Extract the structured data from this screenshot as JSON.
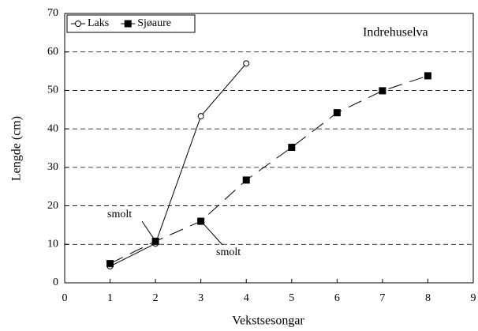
{
  "chart_data": {
    "type": "line",
    "xlabel": "Vekstsesongar",
    "ylabel": "Lengde (cm)",
    "annotations": [
      {
        "text": "Indrehuselva"
      },
      {
        "text": "smolt"
      },
      {
        "text": "smolt"
      }
    ],
    "x": [
      1,
      2,
      3,
      4,
      5,
      6,
      7,
      8
    ],
    "series": [
      {
        "name": "Laks",
        "color": "#000000",
        "marker": "open-circle",
        "linestyle": "solid",
        "values": [
          4.3,
          10.2,
          43.3,
          57.0,
          null,
          null,
          null,
          null
        ]
      },
      {
        "name": "Sjøaure",
        "color": "#000000",
        "marker": "filled-square",
        "linestyle": "dashed",
        "values": [
          5.0,
          10.8,
          16.0,
          26.7,
          35.2,
          44.2,
          49.9,
          53.8
        ]
      }
    ],
    "xlim": [
      0,
      9
    ],
    "xticks": [
      0,
      1,
      2,
      3,
      4,
      5,
      6,
      7,
      8,
      9
    ],
    "ylim": [
      0,
      70
    ],
    "yticks": [
      0,
      10,
      20,
      30,
      40,
      50,
      60,
      70
    ],
    "grid": true,
    "legend": "top-left"
  }
}
